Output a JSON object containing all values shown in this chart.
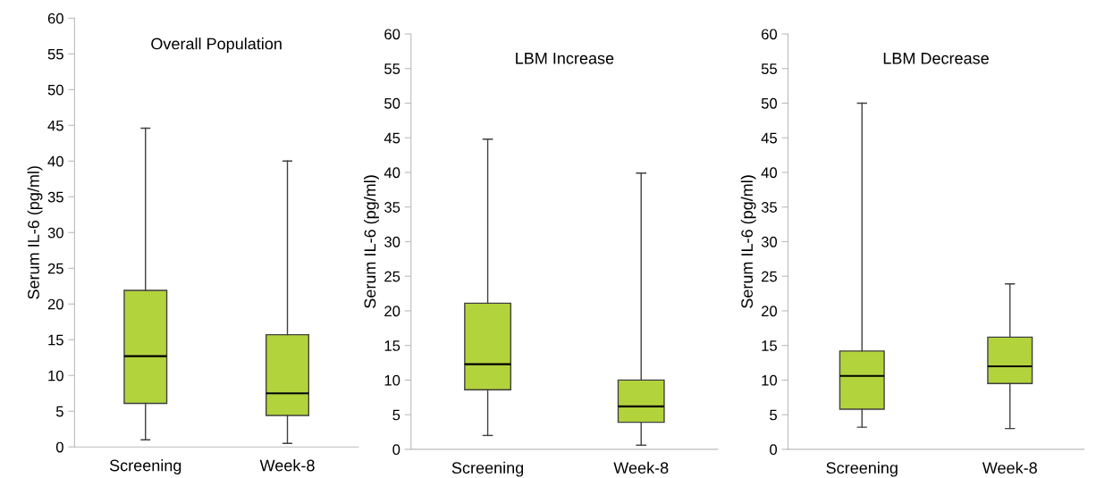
{
  "chart_data": [
    {
      "type": "box",
      "title": "Overall Population",
      "ylabel": "Serum IL-6 (pg/ml)",
      "categories": [
        "Screening",
        "Week-8"
      ],
      "color": "#b3d33c",
      "ylim": [
        0,
        60
      ],
      "yticks": [
        0,
        5,
        10,
        15,
        20,
        25,
        30,
        35,
        40,
        45,
        50,
        55,
        60
      ],
      "grid": false,
      "boxes": [
        {
          "low": 1,
          "q1": 6.1,
          "median": 12.7,
          "q3": 21.9,
          "high": 44.6
        },
        {
          "low": 0.5,
          "q1": 4.4,
          "median": 7.5,
          "q3": 15.7,
          "high": 40
        }
      ]
    },
    {
      "type": "box",
      "title": "LBM Increase",
      "ylabel": "Serum IL-6 (pg/ml)",
      "categories": [
        "Screening",
        "Week-8"
      ],
      "color": "#b3d33c",
      "ylim": [
        0,
        60
      ],
      "yticks": [
        0,
        5,
        10,
        15,
        20,
        25,
        30,
        35,
        40,
        45,
        50,
        55,
        60
      ],
      "grid": false,
      "boxes": [
        {
          "low": 2,
          "q1": 8.6,
          "median": 12.3,
          "q3": 21.1,
          "high": 44.8
        },
        {
          "low": 0.6,
          "q1": 3.9,
          "median": 6.2,
          "q3": 10,
          "high": 39.9
        }
      ]
    },
    {
      "type": "box",
      "title": "LBM Decrease",
      "ylabel": "Serum IL-6 (pg/ml)",
      "categories": [
        "Screening",
        "Week-8"
      ],
      "color": "#b3d33c",
      "ylim": [
        0,
        60
      ],
      "yticks": [
        0,
        5,
        10,
        15,
        20,
        25,
        30,
        35,
        40,
        45,
        50,
        55,
        60
      ],
      "grid": false,
      "boxes": [
        {
          "low": 3.2,
          "q1": 5.8,
          "median": 10.6,
          "q3": 14.2,
          "high": 50
        },
        {
          "low": 3,
          "q1": 9.5,
          "median": 12,
          "q3": 16.2,
          "high": 23.9
        }
      ]
    }
  ]
}
